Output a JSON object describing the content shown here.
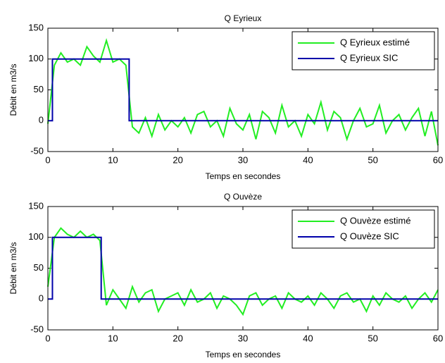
{
  "chart_data": [
    {
      "type": "line",
      "title": "Q Eyrieux",
      "xlabel": "Temps en secondes",
      "ylabel": "Débit en m3/s",
      "xlim": [
        0,
        60
      ],
      "ylim": [
        -50,
        150
      ],
      "xticks": [
        0,
        10,
        20,
        30,
        40,
        50,
        60
      ],
      "yticks": [
        -50,
        0,
        50,
        100,
        150
      ],
      "grid": false,
      "legend": "northeast",
      "series": [
        {
          "name": "Q Eyrieux estimé",
          "color": "#22ee22",
          "x": [
            0,
            1,
            2,
            3,
            4,
            5,
            6,
            7,
            8,
            9,
            10,
            11,
            12,
            13,
            14,
            15,
            16,
            17,
            18,
            19,
            20,
            21,
            22,
            23,
            24,
            25,
            26,
            27,
            28,
            29,
            30,
            31,
            32,
            33,
            34,
            35,
            36,
            37,
            38,
            39,
            40,
            41,
            42,
            43,
            44,
            45,
            46,
            47,
            48,
            49,
            50,
            51,
            52,
            53,
            54,
            55,
            56,
            57,
            58,
            59,
            60
          ],
          "values": [
            -5,
            90,
            110,
            95,
            100,
            90,
            120,
            105,
            95,
            130,
            95,
            100,
            90,
            -10,
            -20,
            5,
            -25,
            10,
            -15,
            0,
            -10,
            5,
            -20,
            10,
            15,
            -10,
            0,
            -25,
            20,
            -5,
            -15,
            10,
            -30,
            15,
            5,
            -20,
            25,
            -10,
            0,
            -25,
            10,
            -5,
            30,
            -15,
            15,
            5,
            -30,
            0,
            20,
            -10,
            -5,
            25,
            -20,
            0,
            10,
            -15,
            5,
            20,
            -25,
            15,
            -40
          ]
        },
        {
          "name": "Q Eyrieux SIC",
          "color": "#0000aa",
          "x": [
            0,
            0.7,
            0.7,
            12.5,
            12.5,
            60
          ],
          "values": [
            0,
            0,
            100,
            100,
            0,
            0
          ]
        }
      ]
    },
    {
      "type": "line",
      "title": "Q Ouvèze",
      "xlabel": "Temps en secondes",
      "ylabel": "Débit en m3/s",
      "xlim": [
        0,
        60
      ],
      "ylim": [
        -50,
        150
      ],
      "xticks": [
        0,
        10,
        20,
        30,
        40,
        50,
        60
      ],
      "yticks": [
        -50,
        0,
        50,
        100,
        150
      ],
      "grid": false,
      "legend": "northeast",
      "series": [
        {
          "name": "Q Ouvèze estimé",
          "color": "#22ee22",
          "x": [
            0,
            1,
            2,
            3,
            4,
            5,
            6,
            7,
            8,
            9,
            10,
            11,
            12,
            13,
            14,
            15,
            16,
            17,
            18,
            19,
            20,
            21,
            22,
            23,
            24,
            25,
            26,
            27,
            28,
            29,
            30,
            31,
            32,
            33,
            34,
            35,
            36,
            37,
            38,
            39,
            40,
            41,
            42,
            43,
            44,
            45,
            46,
            47,
            48,
            49,
            50,
            51,
            52,
            53,
            54,
            55,
            56,
            57,
            58,
            59,
            60
          ],
          "values": [
            20,
            100,
            115,
            105,
            100,
            110,
            100,
            105,
            95,
            -10,
            15,
            0,
            -15,
            20,
            -5,
            10,
            15,
            -20,
            0,
            5,
            10,
            -10,
            15,
            -5,
            0,
            10,
            -15,
            5,
            0,
            -10,
            -25,
            5,
            10,
            -10,
            0,
            5,
            -15,
            10,
            0,
            -5,
            5,
            -10,
            10,
            0,
            -15,
            5,
            10,
            -5,
            0,
            -20,
            5,
            -10,
            10,
            0,
            -5,
            5,
            -15,
            0,
            10,
            -5,
            15
          ]
        },
        {
          "name": "Q Ouvèze SIC",
          "color": "#0000aa",
          "x": [
            0,
            0.7,
            0.7,
            8.2,
            8.2,
            60
          ],
          "values": [
            0,
            0,
            100,
            100,
            0,
            0
          ]
        }
      ]
    }
  ]
}
